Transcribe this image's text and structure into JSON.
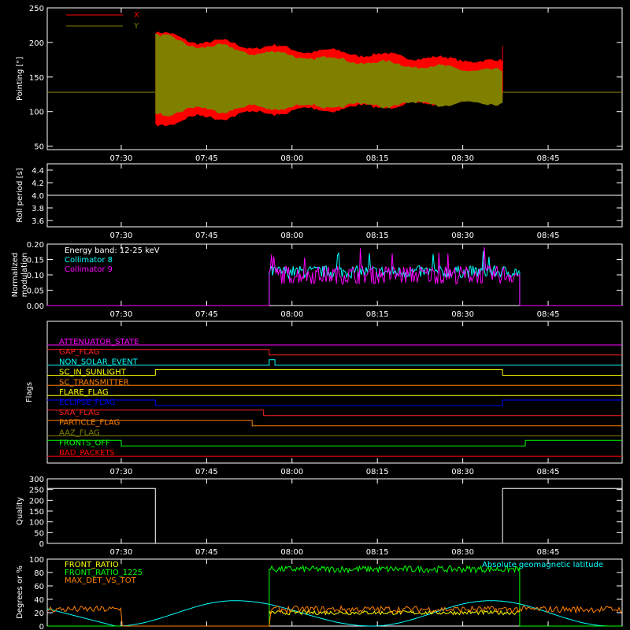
{
  "time_axis": {
    "range": [
      "07:17",
      "08:58"
    ],
    "ticks": [
      "07:30",
      "07:45",
      "08:00",
      "08:15",
      "08:30",
      "08:45"
    ]
  },
  "chart_data": [
    {
      "id": "pointing",
      "type": "area",
      "ylabel": "Pointing [\"]",
      "ylim": [
        45,
        250
      ],
      "yticks": [
        50,
        100,
        150,
        200,
        250
      ],
      "baseline": 128,
      "active": [
        "07:36",
        "08:37"
      ],
      "series": [
        {
          "name": "X",
          "color": "#ff0000",
          "start": [
            "07:36",
            215,
            80
          ],
          "end": [
            "08:37",
            172,
            116
          ]
        },
        {
          "name": "Y",
          "color": "#808000",
          "start": [
            "07:36",
            212,
            98
          ],
          "end": [
            "08:37",
            158,
            113
          ]
        }
      ]
    },
    {
      "id": "roll",
      "type": "line",
      "ylabel": "Roll period [s]",
      "ylim": [
        3.5,
        4.5
      ],
      "yticks": [
        3.6,
        3.8,
        4.0,
        4.2,
        4.4
      ],
      "series": [
        {
          "name": "",
          "color": "#ffffff",
          "value": 4.0
        }
      ]
    },
    {
      "id": "modulation",
      "type": "line",
      "ylabel": "Normalized modulation",
      "ylim": [
        0,
        0.2
      ],
      "yticks": [
        0.0,
        0.05,
        0.1,
        0.15,
        0.2
      ],
      "legend": {
        "title": "Energy band: 12-25 keV",
        "entries": [
          "Collimator 8",
          "Collimator 9"
        ]
      },
      "active": [
        "07:56",
        "08:40"
      ],
      "series": [
        {
          "name": "Collimator 8",
          "color": "#00ffff",
          "level": 0.11,
          "noise": 0.02
        },
        {
          "name": "Collimator 9",
          "color": "#ff00ff",
          "level": 0.1,
          "noise": 0.03
        }
      ]
    },
    {
      "id": "flags",
      "type": "line",
      "ylabel": "Flags",
      "flags": [
        {
          "name": "ATTENUATOR_STATE",
          "color": "#ff00ff",
          "segments": [
            [
              "07:17",
              "08:58",
              0
            ]
          ]
        },
        {
          "name": "GAP_FLAG",
          "color": "#ff2020",
          "segments": [
            [
              "07:17",
              "07:56",
              1
            ],
            [
              "07:56",
              "08:58",
              0
            ]
          ]
        },
        {
          "name": "NON_SOLAR_EVENT",
          "color": "#00ffff",
          "segments": [
            [
              "07:17",
              "07:56",
              0
            ],
            [
              "07:56",
              "07:57",
              1
            ],
            [
              "07:57",
              "08:58",
              0
            ]
          ]
        },
        {
          "name": "SC_IN_SUNLIGHT",
          "color": "#ffff00",
          "segments": [
            [
              "07:17",
              "07:36",
              0
            ],
            [
              "07:36",
              "08:37",
              1
            ],
            [
              "08:37",
              "08:58",
              0
            ]
          ]
        },
        {
          "name": "SC_TRANSMITTER",
          "color": "#ff8000",
          "segments": [
            [
              "07:17",
              "08:58",
              0
            ]
          ]
        },
        {
          "name": "FLARE_FLAG",
          "color": "#ffff00",
          "segments": [
            [
              "07:17",
              "08:58",
              0
            ]
          ]
        },
        {
          "name": "ECLIPSE_FLAG",
          "color": "#0000ff",
          "segments": [
            [
              "07:17",
              "07:36",
              1
            ],
            [
              "07:36",
              "08:37",
              0
            ],
            [
              "08:37",
              "08:58",
              1
            ]
          ]
        },
        {
          "name": "SAA_FLAG",
          "color": "#ff2020",
          "segments": [
            [
              "07:17",
              "07:55",
              1
            ],
            [
              "07:55",
              "08:58",
              0
            ]
          ]
        },
        {
          "name": "PARTICLE_FLAG",
          "color": "#ff8000",
          "segments": [
            [
              "07:17",
              "07:53",
              1
            ],
            [
              "07:53",
              "08:58",
              0
            ]
          ]
        },
        {
          "name": "AAZ_FLAG",
          "color": "#808000",
          "segments": [
            [
              "07:17",
              "08:58",
              0
            ]
          ]
        },
        {
          "name": "FRONTS_OFF",
          "color": "#00ff00",
          "segments": [
            [
              "07:17",
              "07:30",
              1
            ],
            [
              "07:30",
              "08:41",
              0
            ],
            [
              "08:41",
              "08:58",
              1
            ]
          ]
        },
        {
          "name": "BAD_PACKETS",
          "color": "#ff0000",
          "segments": [
            [
              "07:17",
              "08:58",
              0
            ]
          ]
        }
      ]
    },
    {
      "id": "quality",
      "type": "line",
      "ylabel": "Quality",
      "ylim": [
        0,
        300
      ],
      "yticks": [
        0,
        50,
        100,
        150,
        200,
        250,
        300
      ],
      "series": [
        {
          "name": "",
          "color": "#ffffff",
          "segments": [
            [
              "07:17",
              "07:36",
              255
            ],
            [
              "07:36",
              "08:37",
              0
            ],
            [
              "08:37",
              "08:58",
              255
            ]
          ]
        }
      ]
    },
    {
      "id": "ratios",
      "type": "line",
      "ylabel": "Degrees or %",
      "ylim": [
        0,
        100
      ],
      "yticks": [
        0,
        20,
        40,
        60,
        80,
        100
      ],
      "series": [
        {
          "name": "FRONT_RATIO",
          "color": "#ffff00",
          "level": 20,
          "active": [
            "07:56",
            "08:40"
          ]
        },
        {
          "name": "FRONT_RATIO_1225",
          "color": "#00ff00",
          "level": 85,
          "active": [
            "07:56",
            "08:40"
          ]
        },
        {
          "name": "MAX_DET_VS_TOT",
          "color": "#ff8000",
          "level": 25
        },
        {
          "name": "Absolute geomagnetic latitude",
          "color": "#00ffff",
          "peaks": [
            [
              "07:29",
              0
            ],
            [
              "07:50",
              38
            ],
            [
              "08:14",
              0
            ],
            [
              "08:35",
              38
            ],
            [
              "08:56",
              0
            ]
          ]
        }
      ]
    }
  ]
}
